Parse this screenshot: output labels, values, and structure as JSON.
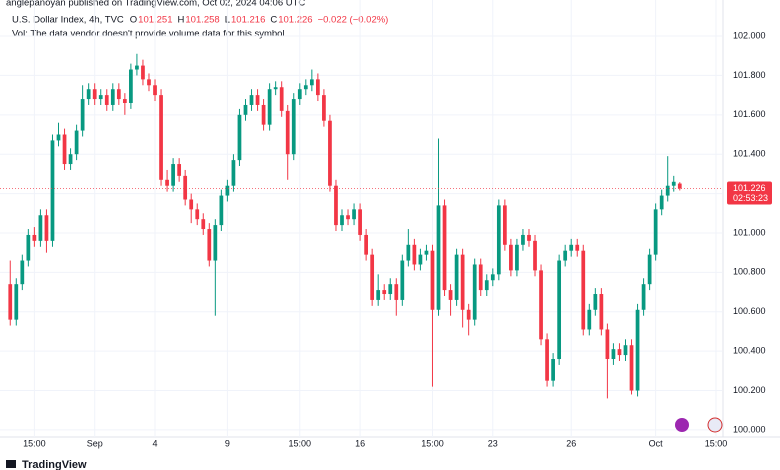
{
  "header": {
    "publisher": "anglepanoyan published on TradingView.com, Oct 02, 2024 04:06 UTC",
    "symbol": "U.S. Dollar Index, 4h, TVC",
    "legend": [
      {
        "key": "O",
        "value": "101.251"
      },
      {
        "key": "H",
        "value": "101.258"
      },
      {
        "key": "L",
        "value": "101.216"
      },
      {
        "key": "C",
        "value": "101.226"
      }
    ],
    "change": "−0.022 (−0.02%)",
    "volume_note": "Vol: The data vendor doesn't provide volume data for this symbol."
  },
  "price_tag": {
    "price": "101.226",
    "countdown": "02:53:23"
  },
  "footer": {
    "brand": "TradingView"
  },
  "chart_data": {
    "type": "candlestick",
    "up_color": "#089981",
    "down_color": "#f23645",
    "grid": true,
    "ylim": [
      99.964,
      102.183
    ],
    "yticks": [
      {
        "value": 100.0,
        "label": "100.000"
      },
      {
        "value": 100.2,
        "label": "100.200"
      },
      {
        "value": 100.4,
        "label": "100.400"
      },
      {
        "value": 100.6,
        "label": "100.600"
      },
      {
        "value": 100.8,
        "label": "100.800"
      },
      {
        "value": 101.0,
        "label": "101.000"
      },
      {
        "value": 101.2,
        "label": "101.200"
      },
      {
        "value": 101.4,
        "label": "101.400"
      },
      {
        "value": 101.6,
        "label": "101.600"
      },
      {
        "value": 101.8,
        "label": "101.800"
      },
      {
        "value": 102.0,
        "label": "102.000"
      }
    ],
    "xlim": [
      -1.7,
      118
    ],
    "xticks": [
      {
        "value": 4,
        "label": "15:00"
      },
      {
        "value": 14,
        "label": "Sep"
      },
      {
        "value": 24,
        "label": "4"
      },
      {
        "value": 36,
        "label": "9"
      },
      {
        "value": 48,
        "label": "15:00"
      },
      {
        "value": 58,
        "label": "16"
      },
      {
        "value": 70,
        "label": "15:00"
      },
      {
        "value": 80,
        "label": "23"
      },
      {
        "value": 93,
        "label": "26"
      },
      {
        "value": 107,
        "label": "Oct"
      },
      {
        "value": 117,
        "label": "15:00"
      }
    ],
    "last_price": 101.226,
    "candles": [
      [
        100.74,
        100.86,
        100.53,
        100.56
      ],
      [
        100.56,
        100.77,
        100.53,
        100.74
      ],
      [
        100.74,
        100.89,
        100.71,
        100.86
      ],
      [
        100.86,
        101.02,
        100.83,
        100.99
      ],
      [
        100.99,
        101.03,
        100.93,
        100.96
      ],
      [
        100.96,
        101.12,
        100.93,
        101.09
      ],
      [
        101.09,
        101.12,
        100.9,
        100.96
      ],
      [
        100.96,
        101.5,
        100.93,
        101.47
      ],
      [
        101.47,
        101.56,
        101.44,
        101.5
      ],
      [
        101.5,
        101.53,
        101.32,
        101.35
      ],
      [
        101.35,
        101.43,
        101.32,
        101.4
      ],
      [
        101.4,
        101.55,
        101.37,
        101.52
      ],
      [
        101.52,
        101.75,
        101.49,
        101.68
      ],
      [
        101.68,
        101.76,
        101.65,
        101.73
      ],
      [
        101.73,
        101.76,
        101.65,
        101.68
      ],
      [
        101.68,
        101.73,
        101.65,
        101.7
      ],
      [
        101.7,
        101.73,
        101.62,
        101.65
      ],
      [
        101.65,
        101.76,
        101.62,
        101.73
      ],
      [
        101.73,
        101.76,
        101.65,
        101.68
      ],
      [
        101.68,
        101.71,
        101.6,
        101.66
      ],
      [
        101.66,
        101.86,
        101.63,
        101.83
      ],
      [
        101.83,
        101.91,
        101.8,
        101.85
      ],
      [
        101.85,
        101.88,
        101.75,
        101.78
      ],
      [
        101.78,
        101.81,
        101.72,
        101.75
      ],
      [
        101.75,
        101.78,
        101.67,
        101.7
      ],
      [
        101.7,
        101.73,
        101.24,
        101.27
      ],
      [
        101.27,
        101.32,
        101.21,
        101.24
      ],
      [
        101.24,
        101.38,
        101.21,
        101.35
      ],
      [
        101.35,
        101.38,
        101.26,
        101.29
      ],
      [
        101.29,
        101.32,
        101.14,
        101.17
      ],
      [
        101.17,
        101.2,
        101.05,
        101.12
      ],
      [
        101.12,
        101.15,
        101.04,
        101.07
      ],
      [
        101.07,
        101.1,
        100.99,
        101.02
      ],
      [
        101.02,
        101.05,
        100.83,
        100.86
      ],
      [
        100.86,
        101.07,
        100.58,
        101.04
      ],
      [
        101.04,
        101.22,
        101.01,
        101.19
      ],
      [
        101.19,
        101.27,
        101.16,
        101.24
      ],
      [
        101.24,
        101.4,
        101.21,
        101.37
      ],
      [
        101.37,
        101.63,
        101.34,
        101.6
      ],
      [
        101.6,
        101.68,
        101.57,
        101.65
      ],
      [
        101.65,
        101.73,
        101.62,
        101.7
      ],
      [
        101.7,
        101.73,
        101.62,
        101.65
      ],
      [
        101.65,
        101.68,
        101.52,
        101.55
      ],
      [
        101.55,
        101.76,
        101.52,
        101.73
      ],
      [
        101.73,
        101.77,
        101.7,
        101.74
      ],
      [
        101.74,
        101.77,
        101.59,
        101.62
      ],
      [
        101.62,
        101.65,
        101.27,
        101.4
      ],
      [
        101.4,
        101.71,
        101.37,
        101.68
      ],
      [
        101.68,
        101.76,
        101.65,
        101.73
      ],
      [
        101.73,
        101.78,
        101.7,
        101.75
      ],
      [
        101.75,
        101.83,
        101.72,
        101.78
      ],
      [
        101.78,
        101.81,
        101.67,
        101.7
      ],
      [
        101.7,
        101.73,
        101.54,
        101.57
      ],
      [
        101.57,
        101.6,
        101.21,
        101.24
      ],
      [
        101.24,
        101.27,
        101.01,
        101.04
      ],
      [
        101.04,
        101.12,
        101.01,
        101.09
      ],
      [
        101.09,
        101.12,
        101.04,
        101.07
      ],
      [
        101.07,
        101.15,
        101.04,
        101.12
      ],
      [
        101.12,
        101.15,
        100.96,
        100.99
      ],
      [
        100.99,
        101.02,
        100.86,
        100.89
      ],
      [
        100.89,
        100.92,
        100.63,
        100.66
      ],
      [
        100.66,
        100.79,
        100.63,
        100.71
      ],
      [
        100.71,
        100.74,
        100.66,
        100.69
      ],
      [
        100.69,
        100.77,
        100.66,
        100.74
      ],
      [
        100.74,
        100.77,
        100.58,
        100.66
      ],
      [
        100.66,
        100.89,
        100.63,
        100.86
      ],
      [
        100.86,
        101.02,
        100.83,
        100.94
      ],
      [
        100.94,
        100.97,
        100.81,
        100.84
      ],
      [
        100.84,
        100.92,
        100.81,
        100.89
      ],
      [
        100.89,
        100.94,
        100.86,
        100.91
      ],
      [
        100.91,
        100.94,
        100.22,
        100.61
      ],
      [
        100.61,
        101.48,
        100.58,
        101.14
      ],
      [
        101.14,
        101.17,
        100.68,
        100.71
      ],
      [
        100.71,
        100.74,
        100.58,
        100.66
      ],
      [
        100.66,
        100.92,
        100.63,
        100.89
      ],
      [
        100.89,
        100.92,
        100.52,
        100.61
      ],
      [
        100.61,
        100.64,
        100.48,
        100.56
      ],
      [
        100.56,
        100.87,
        100.53,
        100.84
      ],
      [
        100.84,
        100.87,
        100.68,
        100.71
      ],
      [
        100.71,
        100.79,
        100.68,
        100.76
      ],
      [
        100.76,
        100.82,
        100.73,
        100.79
      ],
      [
        100.79,
        101.17,
        100.76,
        101.14
      ],
      [
        101.14,
        101.17,
        100.91,
        100.94
      ],
      [
        100.94,
        100.97,
        100.78,
        100.81
      ],
      [
        100.81,
        100.97,
        100.78,
        100.94
      ],
      [
        100.94,
        101.02,
        100.91,
        100.99
      ],
      [
        100.99,
        101.02,
        100.93,
        100.96
      ],
      [
        100.96,
        100.99,
        100.78,
        100.81
      ],
      [
        100.81,
        100.84,
        100.43,
        100.46
      ],
      [
        100.46,
        100.49,
        100.22,
        100.25
      ],
      [
        100.25,
        100.39,
        100.22,
        100.36
      ],
      [
        100.36,
        100.89,
        100.33,
        100.86
      ],
      [
        100.86,
        100.94,
        100.83,
        100.91
      ],
      [
        100.91,
        100.97,
        100.88,
        100.94
      ],
      [
        100.94,
        100.97,
        100.88,
        100.91
      ],
      [
        100.91,
        100.94,
        100.48,
        100.51
      ],
      [
        100.51,
        100.64,
        100.48,
        100.61
      ],
      [
        100.61,
        100.72,
        100.58,
        100.69
      ],
      [
        100.69,
        100.72,
        100.48,
        100.51
      ],
      [
        100.51,
        100.54,
        100.16,
        100.36
      ],
      [
        100.36,
        100.44,
        100.33,
        100.41
      ],
      [
        100.41,
        100.44,
        100.35,
        100.38
      ],
      [
        100.38,
        100.46,
        100.35,
        100.43
      ],
      [
        100.43,
        100.46,
        100.18,
        100.2
      ],
      [
        100.2,
        100.64,
        100.17,
        100.61
      ],
      [
        100.61,
        100.77,
        100.58,
        100.74
      ],
      [
        100.74,
        100.92,
        100.71,
        100.89
      ],
      [
        100.89,
        101.15,
        100.86,
        101.12
      ],
      [
        101.12,
        101.22,
        101.09,
        101.19
      ],
      [
        101.19,
        101.39,
        101.16,
        101.24
      ],
      [
        101.24,
        101.29,
        101.21,
        101.26
      ],
      [
        101.251,
        101.258,
        101.216,
        101.226
      ]
    ]
  }
}
